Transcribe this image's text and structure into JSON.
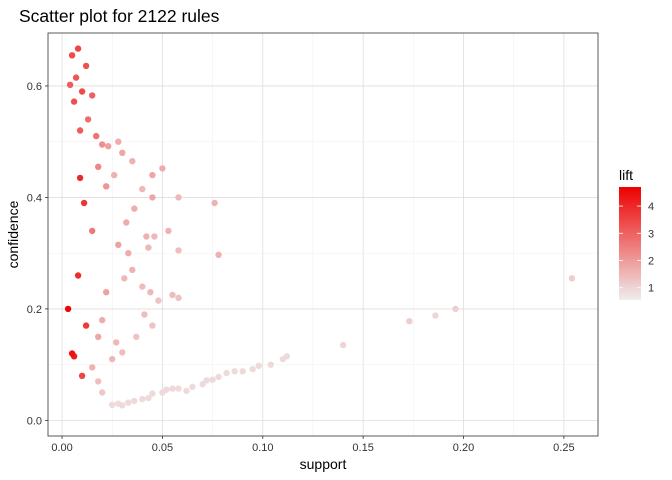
{
  "chart_data": {
    "type": "scatter",
    "title": "Scatter plot for 2122 rules",
    "xlabel": "support",
    "ylabel": "confidence",
    "xlim": [
      -0.007,
      0.267
    ],
    "ylim": [
      -0.028,
      0.695
    ],
    "x_ticks": [
      "0.00",
      "0.05",
      "0.10",
      "0.15",
      "0.20",
      "0.25"
    ],
    "x_tick_values": [
      0.0,
      0.05,
      0.1,
      0.15,
      0.2,
      0.25
    ],
    "y_ticks": [
      "0.0",
      "0.2",
      "0.4",
      "0.6"
    ],
    "y_tick_values": [
      0.0,
      0.2,
      0.4,
      0.6
    ],
    "grid": true,
    "legend": {
      "title": "lift",
      "position": "right",
      "ticks": [
        "1",
        "2",
        "3",
        "4"
      ],
      "tick_values": [
        1,
        2,
        3,
        4
      ],
      "range": [
        0.55,
        4.7
      ],
      "low_color": "#eeeeee",
      "high_color": "#ee0000"
    },
    "points": [
      [
        0.005,
        0.655,
        3.4
      ],
      [
        0.008,
        0.667,
        3.5
      ],
      [
        0.012,
        0.636,
        3.3
      ],
      [
        0.007,
        0.615,
        3.2
      ],
      [
        0.004,
        0.602,
        3.1
      ],
      [
        0.01,
        0.59,
        3.4
      ],
      [
        0.015,
        0.583,
        3.0
      ],
      [
        0.013,
        0.54,
        2.8
      ],
      [
        0.006,
        0.572,
        3.3
      ],
      [
        0.009,
        0.52,
        3.1
      ],
      [
        0.017,
        0.51,
        2.7
      ],
      [
        0.02,
        0.495,
        2.2
      ],
      [
        0.023,
        0.492,
        1.9
      ],
      [
        0.028,
        0.5,
        1.7
      ],
      [
        0.03,
        0.48,
        1.8
      ],
      [
        0.035,
        0.465,
        1.6
      ],
      [
        0.045,
        0.44,
        1.8
      ],
      [
        0.05,
        0.452,
        1.7
      ],
      [
        0.026,
        0.44,
        1.6
      ],
      [
        0.04,
        0.415,
        1.5
      ],
      [
        0.058,
        0.4,
        1.5
      ],
      [
        0.076,
        0.39,
        1.6
      ],
      [
        0.045,
        0.4,
        1.8
      ],
      [
        0.036,
        0.38,
        1.7
      ],
      [
        0.022,
        0.42,
        2.1
      ],
      [
        0.018,
        0.455,
        2.4
      ],
      [
        0.032,
        0.355,
        1.7
      ],
      [
        0.042,
        0.33,
        1.6
      ],
      [
        0.046,
        0.33,
        1.5
      ],
      [
        0.053,
        0.34,
        1.6
      ],
      [
        0.058,
        0.305,
        1.4
      ],
      [
        0.078,
        0.297,
        1.6
      ],
      [
        0.043,
        0.31,
        1.5
      ],
      [
        0.033,
        0.3,
        1.7
      ],
      [
        0.028,
        0.315,
        1.9
      ],
      [
        0.035,
        0.27,
        1.6
      ],
      [
        0.031,
        0.255,
        1.5
      ],
      [
        0.04,
        0.24,
        1.4
      ],
      [
        0.044,
        0.23,
        1.5
      ],
      [
        0.048,
        0.215,
        1.3
      ],
      [
        0.055,
        0.225,
        1.4
      ],
      [
        0.058,
        0.22,
        1.3
      ],
      [
        0.041,
        0.19,
        1.4
      ],
      [
        0.045,
        0.17,
        1.3
      ],
      [
        0.037,
        0.15,
        1.3
      ],
      [
        0.027,
        0.14,
        1.5
      ],
      [
        0.03,
        0.122,
        1.4
      ],
      [
        0.025,
        0.11,
        1.5
      ],
      [
        0.02,
        0.18,
        1.7
      ],
      [
        0.018,
        0.15,
        1.8
      ],
      [
        0.022,
        0.23,
        1.9
      ],
      [
        0.015,
        0.34,
        2.6
      ],
      [
        0.015,
        0.095,
        1.6
      ],
      [
        0.018,
        0.07,
        1.4
      ],
      [
        0.02,
        0.05,
        1.2
      ],
      [
        0.025,
        0.028,
        0.9
      ],
      [
        0.028,
        0.03,
        0.9
      ],
      [
        0.03,
        0.027,
        0.9
      ],
      [
        0.033,
        0.032,
        0.9
      ],
      [
        0.036,
        0.035,
        0.9
      ],
      [
        0.04,
        0.038,
        0.9
      ],
      [
        0.043,
        0.04,
        0.9
      ],
      [
        0.045,
        0.048,
        0.9
      ],
      [
        0.05,
        0.05,
        0.9
      ],
      [
        0.052,
        0.055,
        0.9
      ],
      [
        0.055,
        0.057,
        0.9
      ],
      [
        0.058,
        0.057,
        0.9
      ],
      [
        0.062,
        0.053,
        0.9
      ],
      [
        0.065,
        0.06,
        0.9
      ],
      [
        0.07,
        0.065,
        0.9
      ],
      [
        0.072,
        0.072,
        0.9
      ],
      [
        0.075,
        0.073,
        0.9
      ],
      [
        0.078,
        0.078,
        0.9
      ],
      [
        0.082,
        0.085,
        0.9
      ],
      [
        0.086,
        0.088,
        0.9
      ],
      [
        0.09,
        0.088,
        0.9
      ],
      [
        0.095,
        0.092,
        0.9
      ],
      [
        0.098,
        0.098,
        0.9
      ],
      [
        0.104,
        0.1,
        0.9
      ],
      [
        0.11,
        0.11,
        0.9
      ],
      [
        0.112,
        0.115,
        0.9
      ],
      [
        0.14,
        0.135,
        1.0
      ],
      [
        0.173,
        0.178,
        1.1
      ],
      [
        0.186,
        0.188,
        1.0
      ],
      [
        0.196,
        0.2,
        1.1
      ],
      [
        0.254,
        0.255,
        1.1
      ],
      [
        0.003,
        0.2,
        4.6
      ],
      [
        0.005,
        0.12,
        4.4
      ],
      [
        0.006,
        0.115,
        4.2
      ],
      [
        0.009,
        0.435,
        4.0
      ],
      [
        0.011,
        0.39,
        3.8
      ],
      [
        0.008,
        0.26,
        3.9
      ],
      [
        0.012,
        0.17,
        3.7
      ],
      [
        0.01,
        0.08,
        3.5
      ]
    ]
  }
}
